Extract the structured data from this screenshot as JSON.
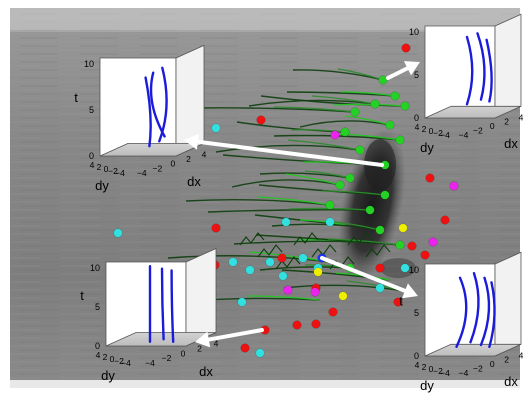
{
  "figure": {
    "colors": {
      "frame_background": "#7f7f7f",
      "trajectory_dark": "#0d3d0d",
      "trajectory_bright": "#22c622",
      "marker_green": "#25d125",
      "marker_red": "#ee1111",
      "marker_cyan": "#33e0e0",
      "marker_magenta": "#ee22ee",
      "marker_yellow": "#eeee00",
      "marker_blue": "#1a33ff",
      "inset_curve": "#1b1bdc",
      "arrow": "#ffffff"
    },
    "insets": [
      {
        "id": "top-left",
        "axis_t_label": "t",
        "axis_dy_label": "dy",
        "axis_dx_label": "dx",
        "t_ticks": [
          "0",
          "5",
          "10"
        ],
        "dy_ticks": [
          "4",
          "2",
          "0",
          "−2",
          "−4"
        ],
        "dx_ticks": [
          "−4",
          "−2",
          "0",
          "2",
          "4"
        ]
      },
      {
        "id": "top-right",
        "axis_t_label": "",
        "axis_dy_label": "dy",
        "axis_dx_label": "dx",
        "t_ticks": [
          "0",
          "5",
          "10"
        ],
        "dy_ticks": [
          "4",
          "2",
          "0",
          "−2",
          "−4"
        ],
        "dx_ticks": [
          "−4",
          "−2",
          "0",
          "2",
          "4"
        ]
      },
      {
        "id": "bottom-left",
        "axis_t_label": "t",
        "axis_dy_label": "dy",
        "axis_dx_label": "dx",
        "t_ticks": [
          "0",
          "5",
          "10"
        ],
        "dy_ticks": [
          "4",
          "2",
          "0",
          "−2",
          "−4"
        ],
        "dx_ticks": [
          "−4",
          "−2",
          "0",
          "2",
          "4"
        ]
      },
      {
        "id": "bottom-right",
        "axis_t_label": "t",
        "axis_dy_label": "dy",
        "axis_dx_label": "dx",
        "t_ticks": [
          "0",
          "5",
          "10"
        ],
        "dy_ticks": [
          "4",
          "2",
          "0",
          "−2",
          "−4"
        ],
        "dx_ticks": [
          "−4",
          "−2",
          "0",
          "2",
          "4"
        ]
      }
    ]
  }
}
